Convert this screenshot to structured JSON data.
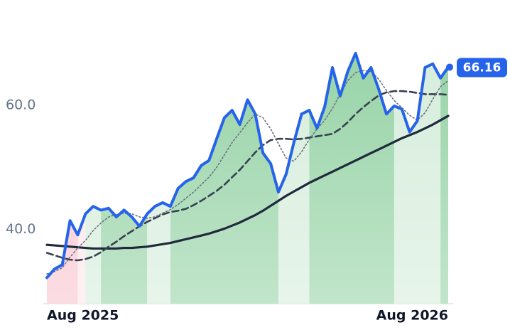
{
  "chart_data": {
    "type": "line",
    "categories": [
      "Aug 2025",
      null,
      null,
      null,
      null,
      null,
      null,
      null,
      null,
      null,
      null,
      null,
      null,
      null,
      null,
      null,
      null,
      null,
      null,
      null,
      null,
      null,
      null,
      null,
      null,
      null,
      null,
      null,
      null,
      null,
      null,
      null,
      null,
      null,
      null,
      null,
      null,
      null,
      null,
      null,
      null,
      null,
      null,
      null,
      null,
      null,
      null,
      null,
      null,
      null,
      null,
      null,
      "Aug 2026"
    ],
    "series": [
      {
        "color": "#2563eb",
        "style": "price",
        "values": [
          32.2,
          33.6,
          34.3,
          41.4,
          39.1,
          42.5,
          43.7,
          43.1,
          43.4,
          42.0,
          43.1,
          42.0,
          40.5,
          42.5,
          43.7,
          44.3,
          43.7,
          46.6,
          47.7,
          48.3,
          50.3,
          51.1,
          54.6,
          58.0,
          59.2,
          56.9,
          60.9,
          58.6,
          52.3,
          50.6,
          46.0,
          48.9,
          54.0,
          58.6,
          59.2,
          56.3,
          59.8,
          66.1,
          61.5,
          65.5,
          68.4,
          64.4,
          66.1,
          62.6,
          58.6,
          59.9,
          59.4,
          55.7,
          57.5,
          66.1,
          66.7,
          64.4,
          66.16
        ]
      },
      {
        "color": "#6b7280",
        "style": "dotted",
        "values": [
          32.8,
          33.2,
          33.8,
          35.5,
          37.0,
          38.2,
          39.8,
          41.0,
          42.0,
          42.4,
          42.6,
          42.5,
          42.0,
          41.8,
          42.0,
          42.6,
          43.2,
          44.0,
          45.0,
          46.0,
          47.2,
          48.4,
          50.0,
          52.0,
          54.0,
          55.6,
          57.2,
          58.6,
          58.0,
          56.2,
          53.8,
          51.5,
          51.0,
          52.5,
          54.5,
          56.2,
          57.6,
          59.5,
          61.8,
          64.0,
          65.3,
          65.6,
          65.5,
          64.2,
          62.4,
          60.8,
          59.6,
          58.4,
          57.6,
          58.8,
          61.0,
          63.0,
          64.0
        ]
      },
      {
        "color": "#374151",
        "style": "dashed",
        "values": [
          36.2,
          35.8,
          35.4,
          35.1,
          35.0,
          35.2,
          35.6,
          36.3,
          37.2,
          38.0,
          38.9,
          39.7,
          40.5,
          41.2,
          41.8,
          42.4,
          42.8,
          43.0,
          43.3,
          43.9,
          44.6,
          45.4,
          46.2,
          47.2,
          48.4,
          49.6,
          51.0,
          52.4,
          53.6,
          54.4,
          54.6,
          54.6,
          54.5,
          54.6,
          54.8,
          55.0,
          55.2,
          55.4,
          56.2,
          57.3,
          58.6,
          59.7,
          60.7,
          61.6,
          62.1,
          62.3,
          62.3,
          62.2,
          62.0,
          61.8,
          61.8,
          61.8,
          61.7
        ]
      },
      {
        "color": "#1e293b",
        "style": "solid",
        "values": [
          37.5,
          37.4,
          37.3,
          37.2,
          37.1,
          37.0,
          36.9,
          36.9,
          36.9,
          36.9,
          37.0,
          37.0,
          37.1,
          37.2,
          37.4,
          37.6,
          37.8,
          38.1,
          38.4,
          38.7,
          39.0,
          39.3,
          39.7,
          40.1,
          40.6,
          41.1,
          41.7,
          42.3,
          43.0,
          43.8,
          44.6,
          45.4,
          46.1,
          46.8,
          47.5,
          48.1,
          48.7,
          49.3,
          49.9,
          50.5,
          51.1,
          51.7,
          52.3,
          52.9,
          53.5,
          54.1,
          54.7,
          55.2,
          55.7,
          56.3,
          56.9,
          57.6,
          58.3
        ]
      }
    ],
    "bands": [
      {
        "from": 0,
        "to": 4,
        "color": "#f8c0cb"
      },
      {
        "from": 4,
        "to": 5,
        "color": "#fde4e8"
      },
      {
        "from": 5,
        "to": 7,
        "color": "#d3ecd9"
      },
      {
        "from": 7,
        "to": 13,
        "color": "#8fd0a0"
      },
      {
        "from": 13,
        "to": 16,
        "color": "#d3ecd9"
      },
      {
        "from": 16,
        "to": 30,
        "color": "#8fd0a0"
      },
      {
        "from": 30,
        "to": 34,
        "color": "#d3ecd9"
      },
      {
        "from": 34,
        "to": 45,
        "color": "#8fd0a0"
      },
      {
        "from": 45,
        "to": 51,
        "color": "#d3ecd9"
      },
      {
        "from": 51,
        "to": 52,
        "color": "#8fd0a0"
      }
    ],
    "ylim": [
      28,
      77
    ],
    "yticks": [
      {
        "value": 40,
        "label": "40.0"
      },
      {
        "value": 60,
        "label": "60.0"
      }
    ],
    "grid": false
  }
}
